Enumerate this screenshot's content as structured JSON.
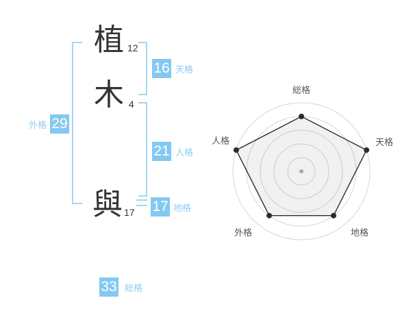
{
  "name": {
    "chars": [
      {
        "char": "植",
        "strokes": "12"
      },
      {
        "char": "木",
        "strokes": "4"
      },
      {
        "char": "與",
        "strokes": "17"
      }
    ]
  },
  "gokaku": {
    "tenkaku": {
      "label": "天格",
      "value": "16"
    },
    "jinkaku": {
      "label": "人格",
      "value": "21"
    },
    "chikaku": {
      "label": "地格",
      "value": "17"
    },
    "gaikaku": {
      "label": "外格",
      "value": "29"
    },
    "soukaku": {
      "label": "総格",
      "value": "33"
    }
  },
  "colors": {
    "accent_blue": "#83c9f1",
    "label_blue": "#8fccf4",
    "bracket_blue": "#a3d6f4",
    "text_dark": "#333333",
    "radar_label_gray": "#555555",
    "radar_grid_gray": "#d6d6d6",
    "radar_line_dark": "#2b2b2b"
  },
  "chart_data": {
    "type": "radar",
    "axes": [
      "総格",
      "天格",
      "地格",
      "外格",
      "人格"
    ],
    "values": [
      4,
      5,
      4,
      4,
      5
    ],
    "max": 5,
    "rings": 5,
    "start_angle_deg": 90,
    "direction": "clockwise",
    "grid": "concentric-circles",
    "legend": "none"
  }
}
